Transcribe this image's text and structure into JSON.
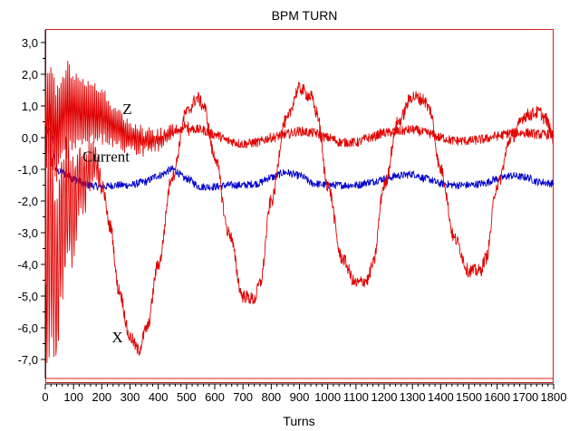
{
  "chart_data": {
    "type": "line",
    "title": "BPM TURN",
    "xlabel": "Turns",
    "ylabel": "",
    "xlim": [
      0,
      1800
    ],
    "ylim": [
      -7.7,
      3.2
    ],
    "x_ticks": [
      "0",
      "100",
      "200",
      "300",
      "400",
      "500",
      "600",
      "700",
      "800",
      "900",
      "1000",
      "1100",
      "1200",
      "1300",
      "1400",
      "1500",
      "1600",
      "1700",
      "1800"
    ],
    "x_tick_values": [
      0,
      100,
      200,
      300,
      400,
      500,
      600,
      700,
      800,
      900,
      1000,
      1100,
      1200,
      1300,
      1400,
      1500,
      1600,
      1700,
      1800
    ],
    "y_ticks": [
      "3,0",
      "2,0",
      "1,0",
      "0,0",
      "-1,0",
      "-2,0",
      "-3,0",
      "-4,0",
      "-5,0",
      "-6,0",
      "-7,0"
    ],
    "y_tick_values": [
      3,
      2,
      1,
      0,
      -1,
      -2,
      -3,
      -4,
      -5,
      -6,
      -7
    ],
    "grid": false,
    "annotations": [
      {
        "text": "Z",
        "x": 290,
        "y": 0.75
      },
      {
        "text": "Current",
        "x": 215,
        "y": -0.75
      },
      {
        "text": "X",
        "x": 255,
        "y": -6.45
      }
    ],
    "series": [
      {
        "name": "X",
        "color": "#e00000",
        "x": [
          0,
          20,
          40,
          60,
          80,
          100,
          120,
          140,
          160,
          180,
          200,
          230,
          260,
          300,
          330,
          360,
          400,
          450,
          500,
          540,
          560,
          600,
          650,
          700,
          740,
          760,
          800,
          850,
          900,
          940,
          960,
          1000,
          1050,
          1100,
          1140,
          1160,
          1200,
          1250,
          1300,
          1340,
          1360,
          1400,
          1450,
          1500,
          1540,
          1560,
          1600,
          1650,
          1700,
          1750,
          1770,
          1800
        ],
        "y": [
          -4.5,
          -3.0,
          -4.8,
          -2.5,
          -2.0,
          -2.3,
          -1.3,
          -1.3,
          -0.9,
          -0.8,
          -1.5,
          -2.8,
          -4.8,
          -6.3,
          -6.7,
          -6.0,
          -4.0,
          -1.2,
          0.8,
          1.25,
          1.0,
          -0.6,
          -3.0,
          -5.0,
          -5.1,
          -4.6,
          -2.0,
          0.5,
          1.55,
          1.3,
          0.8,
          -1.5,
          -3.8,
          -4.6,
          -4.5,
          -4.0,
          -1.5,
          0.5,
          1.3,
          1.2,
          0.9,
          -1.0,
          -3.2,
          -4.2,
          -4.2,
          -3.8,
          -1.5,
          0.0,
          0.7,
          0.8,
          0.6,
          0.0
        ],
        "noise": 0.07
      },
      {
        "name": "Z",
        "color": "#e00000",
        "x": [
          0,
          20,
          40,
          60,
          80,
          100,
          150,
          200,
          250,
          300,
          330,
          360,
          400,
          450,
          500,
          550,
          600,
          650,
          700,
          750,
          800,
          850,
          900,
          950,
          1000,
          1050,
          1100,
          1150,
          1200,
          1250,
          1300,
          1350,
          1400,
          1450,
          1500,
          1550,
          1600,
          1650,
          1700,
          1750,
          1800
        ],
        "y": [
          0.5,
          0.6,
          0.2,
          0.7,
          0.9,
          0.9,
          0.75,
          0.7,
          0.35,
          0.0,
          -0.05,
          -0.1,
          -0.05,
          0.15,
          0.3,
          0.25,
          0.1,
          -0.1,
          -0.2,
          -0.15,
          0.0,
          0.1,
          0.2,
          0.15,
          0.0,
          -0.15,
          -0.15,
          0.0,
          0.15,
          0.2,
          0.25,
          0.15,
          0.0,
          -0.1,
          -0.1,
          -0.05,
          0.05,
          0.15,
          0.15,
          0.1,
          0.1
        ],
        "noise": 0.05
      },
      {
        "name": "Current",
        "color": "#0000cc",
        "x": [
          0,
          20,
          40,
          60,
          80,
          100,
          150,
          200,
          250,
          300,
          350,
          400,
          450,
          500,
          550,
          600,
          650,
          700,
          750,
          800,
          850,
          900,
          950,
          1000,
          1050,
          1100,
          1150,
          1200,
          1250,
          1300,
          1350,
          1400,
          1450,
          1500,
          1550,
          1600,
          1650,
          1700,
          1750,
          1800
        ],
        "y": [
          0.2,
          0.2,
          -1.05,
          -1.1,
          -1.2,
          -1.3,
          -1.5,
          -1.55,
          -1.5,
          -1.5,
          -1.4,
          -1.2,
          -1.0,
          -1.3,
          -1.55,
          -1.55,
          -1.5,
          -1.5,
          -1.45,
          -1.25,
          -1.1,
          -1.2,
          -1.45,
          -1.5,
          -1.5,
          -1.5,
          -1.4,
          -1.3,
          -1.2,
          -1.15,
          -1.3,
          -1.45,
          -1.5,
          -1.5,
          -1.45,
          -1.3,
          -1.2,
          -1.25,
          -1.4,
          -1.45
        ],
        "noise": 0.04
      }
    ],
    "large_oscillation": [
      {
        "series": "X",
        "x_range": [
          0,
          200
        ],
        "amp_start": 4.5,
        "amp_end": 0.5,
        "period": 8
      },
      {
        "series": "Z",
        "x_range": [
          0,
          520
        ],
        "amp_start": 1.8,
        "amp_end": 0.1,
        "period": 6
      }
    ]
  }
}
